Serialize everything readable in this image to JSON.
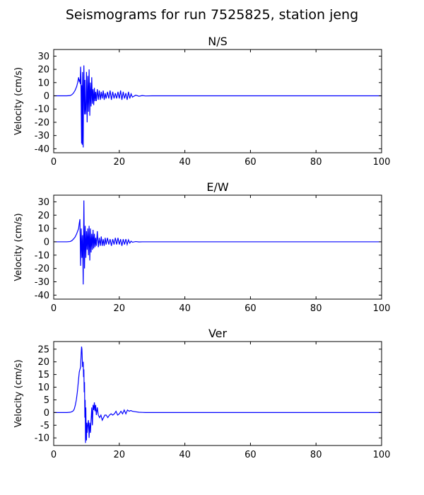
{
  "figure": {
    "title": "Seismograms for run 7525825, station jeng"
  },
  "chart_data": [
    {
      "type": "line",
      "title": "N/S",
      "xlabel": "",
      "ylabel": "Velocity (cm/s)",
      "xlim": [
        0,
        100
      ],
      "ylim": [
        -43,
        35
      ],
      "xticks": [
        0,
        20,
        40,
        60,
        80,
        100
      ],
      "yticks": [
        -40,
        -30,
        -20,
        -10,
        0,
        10,
        20,
        30
      ],
      "grid": false,
      "color": "#0000ff",
      "series": [
        {
          "x": [
            0,
            4,
            5,
            5.5,
            6,
            6.5,
            7,
            7.3,
            7.6,
            7.8,
            8.0,
            8.1,
            8.2,
            8.3,
            8.5,
            8.6,
            8.7,
            8.8,
            8.9,
            9.0,
            9.1,
            9.2,
            9.4,
            9.5,
            9.6,
            9.8,
            10.0,
            10.2,
            10.4,
            10.6,
            10.8,
            11.0,
            11.2,
            11.4,
            11.6,
            11.8,
            12.0,
            12.2,
            12.4,
            12.6,
            12.8,
            13.0,
            13.3,
            13.6,
            13.9,
            14.2,
            14.5,
            14.8,
            15.1,
            15.4,
            15.7,
            16.0,
            16.4,
            16.8,
            17.2,
            17.6,
            18.0,
            18.4,
            18.8,
            19.2,
            19.6,
            20.0,
            20.4,
            20.8,
            21.2,
            21.6,
            22.0,
            22.4,
            22.8,
            23.2,
            23.6,
            24,
            25,
            26,
            27,
            28,
            30,
            100
          ],
          "y": [
            0,
            0,
            0.2,
            0.8,
            2,
            4,
            7,
            10,
            14,
            11,
            12,
            9,
            22,
            14,
            -36,
            8,
            -37,
            18,
            -12,
            -39,
            5,
            23,
            -14,
            12,
            -8,
            -14,
            18,
            -20,
            15,
            -12,
            20,
            -15,
            10,
            -8,
            14,
            -6,
            5,
            -7,
            6,
            -4,
            3,
            -4,
            5,
            -3,
            4,
            -3,
            3,
            -2,
            4,
            -3,
            2,
            -2,
            3,
            -2,
            4,
            -3,
            3,
            -2,
            2,
            -2,
            3,
            -2,
            4,
            -3,
            3,
            -2,
            2,
            -3,
            3,
            -2,
            1.5,
            -1,
            0.5,
            -0.3,
            0.2,
            -0.1,
            0,
            0
          ]
        }
      ]
    },
    {
      "type": "line",
      "title": "E/W",
      "xlabel": "",
      "ylabel": "Velocity (cm/s)",
      "xlim": [
        0,
        100
      ],
      "ylim": [
        -43,
        35
      ],
      "xticks": [
        0,
        20,
        40,
        60,
        80,
        100
      ],
      "yticks": [
        -40,
        -30,
        -20,
        -10,
        0,
        10,
        20,
        30
      ],
      "grid": false,
      "color": "#0000ff",
      "series": [
        {
          "x": [
            0,
            4,
            5,
            5.5,
            6,
            6.5,
            7,
            7.3,
            7.6,
            7.8,
            8.0,
            8.2,
            8.4,
            8.6,
            8.8,
            9.0,
            9.2,
            9.4,
            9.6,
            9.8,
            10.0,
            10.2,
            10.4,
            10.6,
            10.8,
            11.0,
            11.2,
            11.4,
            11.6,
            11.8,
            12.0,
            12.2,
            12.4,
            12.6,
            12.8,
            13.0,
            13.3,
            13.6,
            13.9,
            14.2,
            14.5,
            14.8,
            15.1,
            15.4,
            15.7,
            16.0,
            16.4,
            16.8,
            17.2,
            17.6,
            18.0,
            18.4,
            18.8,
            19.2,
            19.6,
            20.0,
            20.4,
            20.8,
            21.2,
            21.6,
            22.0,
            22.4,
            22.8,
            23.2,
            23.6,
            24,
            25,
            26,
            27,
            28,
            30,
            100
          ],
          "y": [
            0,
            0,
            0.2,
            0.8,
            2,
            3.5,
            6,
            8,
            10,
            14,
            17,
            -18,
            10,
            -12,
            5,
            -32,
            31,
            -20,
            12,
            -12,
            8,
            -6,
            10,
            -10,
            12,
            -14,
            10,
            -8,
            6,
            -6,
            9,
            -5,
            6,
            -4,
            3,
            -3,
            8,
            -4,
            3,
            -3,
            4,
            -3,
            2,
            -3,
            3,
            -2,
            3,
            -2,
            2,
            -3,
            2,
            -2,
            3,
            -2,
            3,
            -2,
            2,
            -3,
            2,
            -2,
            2,
            -2,
            1.5,
            -1,
            0.5,
            -0.3,
            0.2,
            -0.1,
            0,
            0,
            0,
            0
          ]
        }
      ]
    },
    {
      "type": "line",
      "title": "Ver",
      "xlabel": "",
      "ylabel": "Velocity (cm/s)",
      "xlim": [
        0,
        100
      ],
      "ylim": [
        -13,
        28
      ],
      "xticks": [
        0,
        20,
        40,
        60,
        80,
        100
      ],
      "yticks": [
        -10,
        -5,
        0,
        5,
        10,
        15,
        20,
        25
      ],
      "grid": false,
      "color": "#0000ff",
      "series": [
        {
          "x": [
            0,
            4,
            5,
            5.5,
            6,
            6.3,
            6.6,
            6.9,
            7.2,
            7.5,
            7.8,
            8.0,
            8.2,
            8.4,
            8.5,
            8.6,
            8.8,
            9.0,
            9.1,
            9.2,
            9.3,
            9.4,
            9.5,
            9.6,
            9.7,
            9.8,
            9.9,
            10.0,
            10.1,
            10.2,
            10.4,
            10.6,
            10.8,
            11.0,
            11.2,
            11.4,
            11.6,
            11.8,
            12.0,
            12.2,
            12.4,
            12.6,
            12.8,
            13.0,
            13.3,
            13.6,
            14.0,
            14.4,
            14.8,
            15.2,
            15.6,
            16.0,
            16.5,
            17,
            17.5,
            18,
            18.5,
            19,
            19.5,
            20,
            20.5,
            21,
            21.5,
            22,
            22.5,
            23,
            23.5,
            24,
            25,
            26,
            27,
            28,
            29,
            30,
            100
          ],
          "y": [
            0,
            0,
            0.1,
            0.3,
            0.7,
            1.5,
            3,
            5,
            8,
            12,
            16,
            17,
            18,
            24,
            26,
            25,
            18,
            20,
            14,
            17,
            8,
            12,
            -2,
            5,
            -12,
            2,
            -8,
            -11,
            -4,
            -8,
            -5,
            -3,
            -10,
            -4,
            -8,
            -3,
            2,
            -5,
            3,
            1,
            4,
            0.5,
            3,
            -1,
            2,
            -1,
            -2,
            -1,
            -3,
            -2,
            -1,
            -1,
            -2,
            -1,
            -0.5,
            -1,
            -0.5,
            0.5,
            -1,
            -0.5,
            0.5,
            -0.5,
            1,
            -0.5,
            1,
            0.5,
            0.8,
            0.5,
            0.3,
            0.1,
            0.05,
            0,
            0,
            0,
            0
          ]
        }
      ]
    }
  ]
}
